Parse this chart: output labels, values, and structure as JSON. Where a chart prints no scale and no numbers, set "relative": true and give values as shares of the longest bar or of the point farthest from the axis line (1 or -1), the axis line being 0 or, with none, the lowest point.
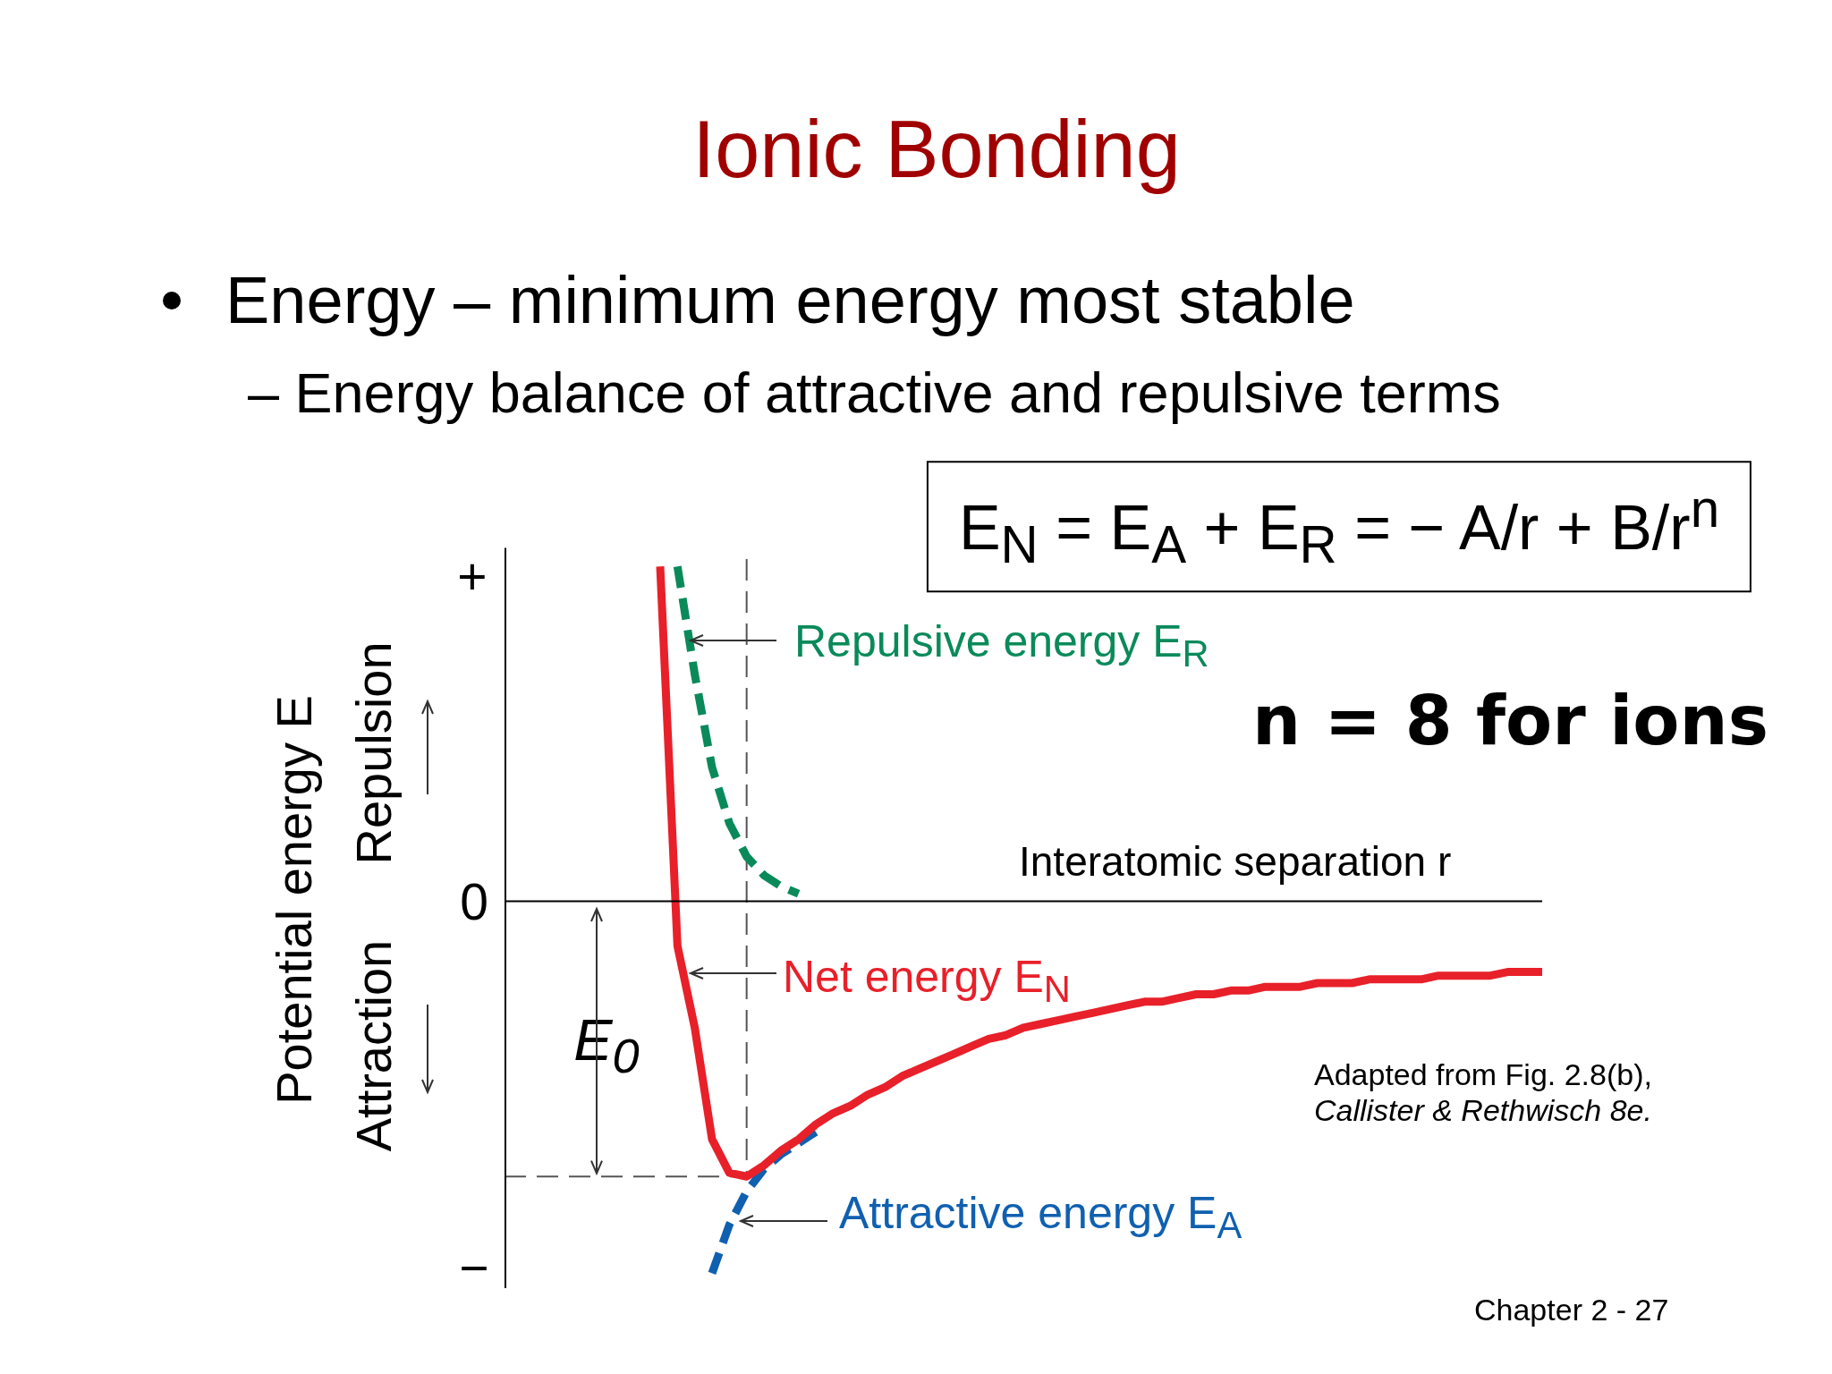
{
  "chart_data": {
    "type": "line",
    "title": "Ionic Bonding",
    "subtitle": "Energy – minimum energy most stable",
    "xlabel": "Interatomic separation r",
    "ylabel": "Potential energy E",
    "relative": true,
    "grid": false,
    "legend": false,
    "marker": "none",
    "categories": [
      null,
      null,
      null,
      null,
      null,
      null,
      null,
      null,
      null,
      null,
      null,
      null,
      null,
      null,
      null,
      null,
      null,
      null,
      null,
      null,
      null,
      null,
      null,
      null,
      null,
      null,
      null,
      null,
      null,
      null,
      null,
      null,
      null,
      null,
      null,
      null,
      null,
      null,
      null,
      null,
      null,
      null,
      null,
      null,
      null,
      null,
      null,
      null,
      null,
      null,
      null,
      null,
      null,
      null,
      null,
      null,
      null,
      null,
      null,
      null,
      null
    ],
    "series": [
      {
        "name": "Net energy E$_{N}$",
        "color": "#e8202a",
        "line_style": "solid",
        "values": [
          null,
          null,
          null,
          null,
          null,
          null,
          null,
          null,
          null,
          0.9,
          -0.12,
          -0.34,
          -0.64,
          -0.73,
          -0.74,
          -0.71,
          -0.67,
          -0.64,
          -0.6,
          -0.57,
          -0.55,
          -0.52,
          -0.5,
          -0.47,
          -0.45,
          -0.43,
          -0.41,
          -0.39,
          -0.37,
          -0.36,
          -0.34,
          -0.33,
          -0.32,
          -0.31,
          -0.3,
          -0.29,
          -0.28,
          -0.27,
          -0.27,
          -0.26,
          -0.25,
          -0.25,
          -0.24,
          -0.24,
          -0.23,
          -0.23,
          -0.23,
          -0.22,
          -0.22,
          -0.22,
          -0.21,
          -0.21,
          -0.21,
          -0.21,
          -0.2,
          -0.2,
          -0.2,
          -0.2,
          -0.19,
          -0.19,
          -0.19
        ]
      },
      {
        "name": "Repulsive energy E$_{R}$",
        "color": "#0a8a5a",
        "line_style": "dashed",
        "values": [
          null,
          null,
          null,
          null,
          null,
          null,
          null,
          null,
          null,
          null,
          0.9,
          0.61,
          0.36,
          0.21,
          0.12,
          0.07,
          0.04,
          0.02,
          null,
          null,
          null,
          null,
          null,
          null,
          null,
          null,
          null,
          null,
          null,
          null,
          null,
          null,
          null,
          null,
          null,
          null,
          null,
          null,
          null,
          null,
          null,
          null,
          null,
          null,
          null,
          null,
          null,
          null,
          null,
          null,
          null,
          null,
          null,
          null,
          null,
          null,
          null,
          null,
          null,
          null,
          null
        ]
      },
      {
        "name": "Attractive energy E$_{A}$",
        "color": "#1060b0",
        "line_style": "dashed",
        "values": [
          null,
          null,
          null,
          null,
          null,
          null,
          null,
          null,
          null,
          null,
          null,
          null,
          -1.0,
          -0.87,
          -0.78,
          -0.72,
          -0.68,
          -0.65,
          -0.62,
          null,
          null,
          null,
          null,
          null,
          null,
          null,
          null,
          null,
          null,
          null,
          null,
          null,
          null,
          null,
          null,
          null,
          null,
          null,
          null,
          null,
          null,
          null,
          null,
          null,
          null,
          null,
          null,
          null,
          null,
          null,
          null,
          null,
          null,
          null,
          null,
          null,
          null,
          null,
          null,
          null,
          null
        ]
      }
    ],
    "ref_lines": [
      {
        "axis": "y",
        "value": -0.74,
        "color": "#555555",
        "line_style": "dashed"
      }
    ],
    "annotations": [
      "– Energy balance of attractive and repulsive terms",
      "E$_{N}$ = E$_{A}$ + E$_{R}$ = − A/r + B/r$^{n}$",
      "n = 8 for ions",
      "Repulsion",
      "Attraction",
      "+",
      "0",
      "−",
      "E$_{0}$",
      "Adapted from Fig. 2.8(b),",
      "Callister & Rethwisch 8e.",
      "Chapter 2 - 27"
    ]
  }
}
